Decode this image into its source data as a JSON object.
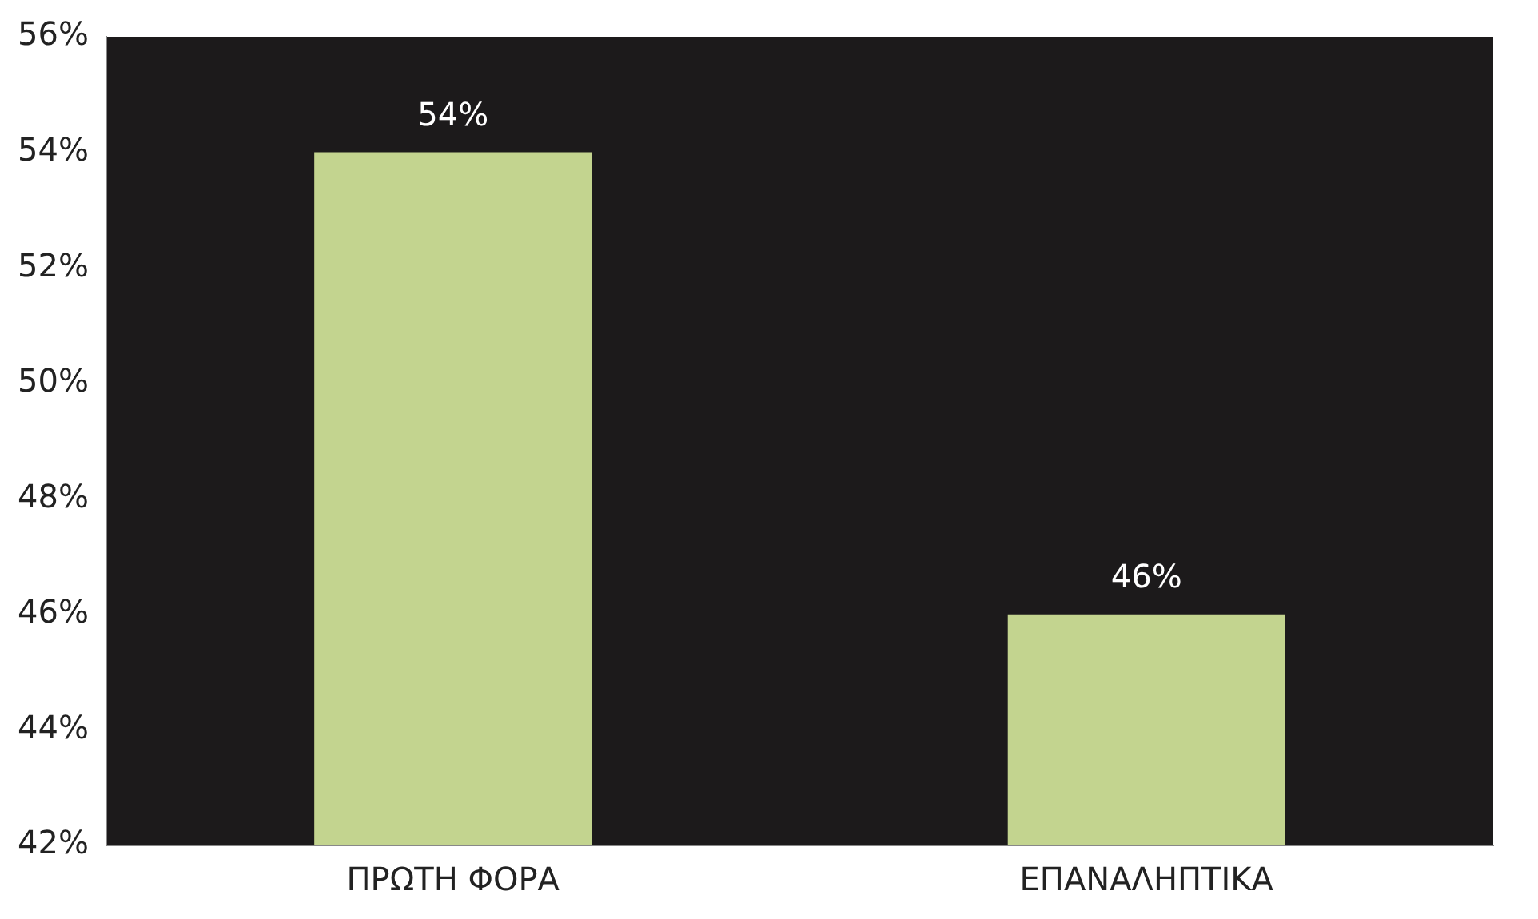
{
  "chart_data": {
    "type": "bar",
    "categories": [
      "ΠΡΩΤΗ ΦΟΡΑ",
      "ΕΠΑΝΑΛΗΠΤΙΚΑ"
    ],
    "values": [
      54,
      46
    ],
    "value_labels": [
      "54%",
      "46%"
    ],
    "color": "#c3d48f",
    "ylim": [
      42,
      56
    ],
    "yticks": [
      {
        "value": 42,
        "label": "42%"
      },
      {
        "value": 44,
        "label": "44%"
      },
      {
        "value": 46,
        "label": "46%"
      },
      {
        "value": 48,
        "label": "48%"
      },
      {
        "value": 50,
        "label": "50%"
      },
      {
        "value": 52,
        "label": "52%"
      },
      {
        "value": 54,
        "label": "54%"
      },
      {
        "value": 56,
        "label": "56%"
      }
    ],
    "grid": false,
    "legend": false
  }
}
